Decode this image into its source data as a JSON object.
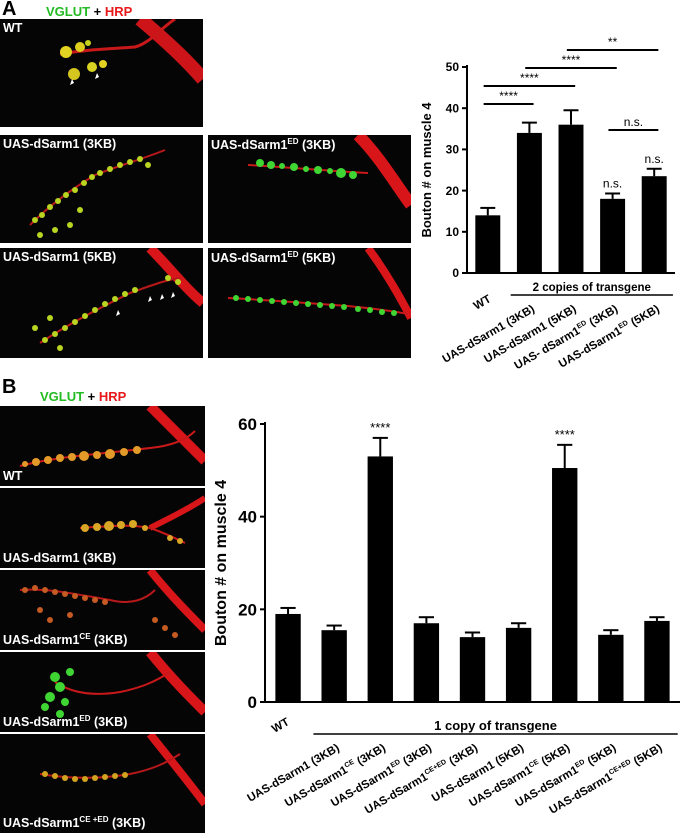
{
  "panel_a": {
    "letter": "A",
    "stain": {
      "green": "VGLUT",
      "plus": " + ",
      "red": "HRP"
    },
    "images": [
      {
        "label": "WT"
      },
      {
        "label": "UAS-dSarm1 (3KB)"
      },
      {
        "label_main": "UAS-dSarm1",
        "label_sup": "ED",
        "label_tail": " (3KB)"
      },
      {
        "label": "UAS-dSarm1 (5KB)"
      },
      {
        "label_main": "UAS-dSarm1",
        "label_sup": "ED",
        "label_tail": " (5KB)"
      }
    ]
  },
  "panel_b": {
    "letter": "B",
    "stain": {
      "green": "VGLUT",
      "plus": " + ",
      "red": "HRP"
    },
    "images": [
      {
        "label": "WT"
      },
      {
        "label": "UAS-dSarm1 (3KB)"
      },
      {
        "label_main": "UAS-dSarm1",
        "label_sup": "CE",
        "label_tail": " (3KB)"
      },
      {
        "label_main": "UAS-dSarm1",
        "label_sup": "ED",
        "label_tail": " (3KB)"
      },
      {
        "label_main": "UAS-dSarm1",
        "label_sup": "CE +ED",
        "label_tail": " (3KB)"
      }
    ]
  },
  "colors": {
    "green": "#22bb22",
    "red": "#e8191b",
    "bar": "#000000"
  },
  "chart_data": [
    {
      "type": "bar",
      "title": "",
      "ylabel": "Bouton # on muscle 4",
      "ylim": [
        0,
        50
      ],
      "yticks": [
        0,
        10,
        20,
        30,
        40,
        50
      ],
      "categories": [
        {
          "main": "WT"
        },
        {
          "main": "UAS-dSarm1 (3KB)"
        },
        {
          "main": "UAS-dSarm1 (5KB)"
        },
        {
          "main": "UAS- dSarm1",
          "sup": "ED",
          "tail": " (3KB)"
        },
        {
          "main": "UAS-dSarm1",
          "sup": "ED",
          "tail": " (5KB)"
        }
      ],
      "values": [
        14,
        34,
        36,
        18,
        23.5
      ],
      "errors": [
        1.8,
        2.5,
        3.5,
        1.3,
        1.8
      ],
      "bar_annotations": [
        "",
        "",
        "",
        "n.s.",
        "n.s."
      ],
      "group_label": "2 copies of transgene",
      "comparisons": [
        {
          "from": 0,
          "to": 1,
          "label": "****"
        },
        {
          "from": 0,
          "to": 2,
          "label": "****"
        },
        {
          "from": 1,
          "to": 3,
          "label": "****"
        },
        {
          "from": 2,
          "to": 4,
          "label": "**"
        },
        {
          "from": 3,
          "to": 4,
          "label": "n.s."
        }
      ]
    },
    {
      "type": "bar",
      "title": "",
      "ylabel": "Bouton # on muscle 4",
      "ylim": [
        0,
        60
      ],
      "yticks": [
        0,
        20,
        40,
        60
      ],
      "categories": [
        {
          "main": "WT"
        },
        {
          "main": "UAS-dSarm1 (3KB)"
        },
        {
          "main": "UAS-dSarm1",
          "sup": "CE",
          "tail": " (3KB)"
        },
        {
          "main": "UAS-dSarm1",
          "sup": "ED",
          "tail": " (3KB)"
        },
        {
          "main": "UAS-dSarm1",
          "sup": "CE+ED",
          "tail": " (3KB)"
        },
        {
          "main": "UAS-dSarm1 (5KB)"
        },
        {
          "main": "UAS-dSarm1",
          "sup": "CE",
          "tail": " (5KB)"
        },
        {
          "main": "UAS-dSarm1",
          "sup": "ED",
          "tail": " (5KB)"
        },
        {
          "main": "UAS-dSarm1",
          "sup": "CE+ED",
          "tail": " (5KB)"
        }
      ],
      "values": [
        19,
        15.5,
        53,
        17,
        14,
        16,
        50.5,
        14.5,
        17.5
      ],
      "errors": [
        1.3,
        1.0,
        4.0,
        1.3,
        1.0,
        1.0,
        5.0,
        1.0,
        0.8
      ],
      "bar_annotations": [
        "",
        "",
        "****",
        "",
        "",
        "",
        "****",
        "",
        ""
      ],
      "group_label": "1 copy of transgene"
    }
  ]
}
